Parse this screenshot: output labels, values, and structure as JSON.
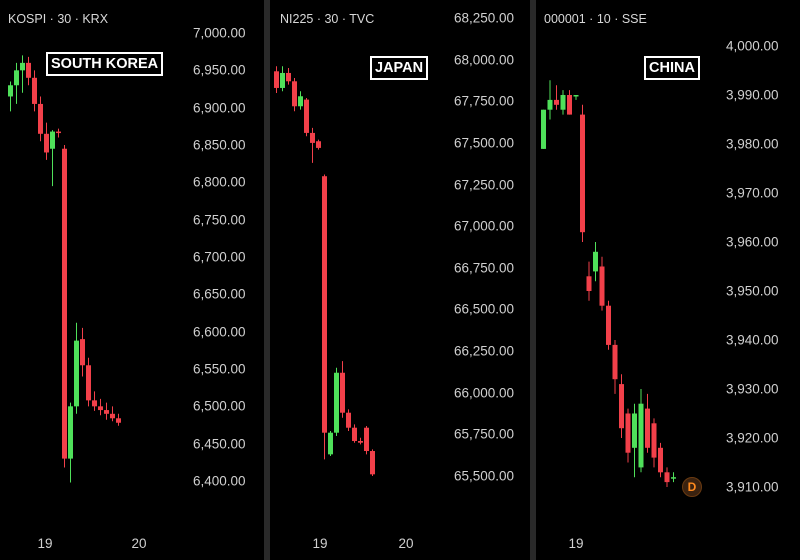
{
  "colors": {
    "up": "#4fe05a",
    "down": "#f2404a",
    "background": "#000000",
    "text": "#d0d0d0"
  },
  "chart_data": [
    {
      "type": "candlestick",
      "symbol": "KOSPI · 30 · KRX",
      "label": "SOUTH KOREA",
      "ylim": [
        6380,
        7025
      ],
      "y_ticks": [
        "7,000.00",
        "6,950.00",
        "6,900.00",
        "6,850.00",
        "6,800.00",
        "6,750.00",
        "6,700.00",
        "6,650.00",
        "6,600.00",
        "6,550.00",
        "6,500.00",
        "6,450.00",
        "6,400.00"
      ],
      "x_ticks": [
        "19",
        "20"
      ],
      "candles": [
        {
          "o": 6915,
          "h": 6935,
          "l": 6895,
          "c": 6930
        },
        {
          "o": 6930,
          "h": 6960,
          "l": 6905,
          "c": 6950
        },
        {
          "o": 6950,
          "h": 6970,
          "l": 6920,
          "c": 6960
        },
        {
          "o": 6960,
          "h": 6968,
          "l": 6930,
          "c": 6940
        },
        {
          "o": 6940,
          "h": 6950,
          "l": 6895,
          "c": 6905
        },
        {
          "o": 6905,
          "h": 6915,
          "l": 6855,
          "c": 6865
        },
        {
          "o": 6865,
          "h": 6880,
          "l": 6830,
          "c": 6840
        },
        {
          "o": 6845,
          "h": 6870,
          "l": 6795,
          "c": 6868
        },
        {
          "o": 6868,
          "h": 6872,
          "l": 6860,
          "c": 6866
        },
        {
          "o": 6845,
          "h": 6850,
          "l": 6418,
          "c": 6430
        },
        {
          "o": 6430,
          "h": 6505,
          "l": 6398,
          "c": 6500
        },
        {
          "o": 6500,
          "h": 6612,
          "l": 6490,
          "c": 6588
        },
        {
          "o": 6590,
          "h": 6605,
          "l": 6540,
          "c": 6555
        },
        {
          "o": 6555,
          "h": 6565,
          "l": 6500,
          "c": 6508
        },
        {
          "o": 6508,
          "h": 6520,
          "l": 6494,
          "c": 6500
        },
        {
          "o": 6500,
          "h": 6510,
          "l": 6488,
          "c": 6495
        },
        {
          "o": 6495,
          "h": 6505,
          "l": 6482,
          "c": 6490
        },
        {
          "o": 6490,
          "h": 6500,
          "l": 6480,
          "c": 6484
        },
        {
          "o": 6484,
          "h": 6490,
          "l": 6474,
          "c": 6478
        }
      ]
    },
    {
      "type": "candlestick",
      "symbol": "NI225 · 30 · TVC",
      "label": "JAPAN",
      "ylim": [
        65430,
        68260
      ],
      "y_ticks": [
        "68,250.00",
        "68,000.00",
        "67,750.00",
        "67,500.00",
        "67,250.00",
        "67,000.00",
        "66,750.00",
        "66,500.00",
        "66,250.00",
        "66,000.00",
        "65,750.00",
        "65,500.00"
      ],
      "x_ticks": [
        "19",
        "20"
      ],
      "candles": [
        {
          "o": 67930,
          "h": 67960,
          "l": 67800,
          "c": 67830
        },
        {
          "o": 67830,
          "h": 67960,
          "l": 67810,
          "c": 67920
        },
        {
          "o": 67920,
          "h": 67950,
          "l": 67850,
          "c": 67870
        },
        {
          "o": 67870,
          "h": 67890,
          "l": 67690,
          "c": 67720
        },
        {
          "o": 67720,
          "h": 67810,
          "l": 67700,
          "c": 67780
        },
        {
          "o": 67760,
          "h": 67770,
          "l": 67540,
          "c": 67560
        },
        {
          "o": 67560,
          "h": 67590,
          "l": 67380,
          "c": 67500
        },
        {
          "o": 67510,
          "h": 67520,
          "l": 67460,
          "c": 67470
        },
        {
          "o": 67300,
          "h": 67310,
          "l": 65600,
          "c": 65760
        },
        {
          "o": 65630,
          "h": 65770,
          "l": 65620,
          "c": 65760
        },
        {
          "o": 65760,
          "h": 66150,
          "l": 65740,
          "c": 66120
        },
        {
          "o": 66120,
          "h": 66190,
          "l": 65850,
          "c": 65880
        },
        {
          "o": 65880,
          "h": 65900,
          "l": 65770,
          "c": 65790
        },
        {
          "o": 65790,
          "h": 65810,
          "l": 65700,
          "c": 65710
        },
        {
          "o": 65710,
          "h": 65730,
          "l": 65690,
          "c": 65700
        },
        {
          "o": 65790,
          "h": 65800,
          "l": 65630,
          "c": 65650
        },
        {
          "o": 65650,
          "h": 65660,
          "l": 65500,
          "c": 65510
        }
      ]
    },
    {
      "type": "candlestick",
      "symbol": "000001 · 10 · SSE",
      "label": "CHINA",
      "ylim": [
        3907.5,
        4001
      ],
      "y_ticks": [
        "4,000.00",
        "3,990.00",
        "3,980.00",
        "3,970.00",
        "3,960.00",
        "3,950.00",
        "3,940.00",
        "3,930.00",
        "3,920.00",
        "3,910.00"
      ],
      "x_ticks": [
        "19"
      ],
      "candles": [
        {
          "o": 3979,
          "h": 3987,
          "l": 3979,
          "c": 3987
        },
        {
          "o": 3987,
          "h": 3993,
          "l": 3985,
          "c": 3989
        },
        {
          "o": 3989,
          "h": 3992,
          "l": 3987,
          "c": 3988
        },
        {
          "o": 3987,
          "h": 3991,
          "l": 3986,
          "c": 3990
        },
        {
          "o": 3990,
          "h": 3991,
          "l": 3986,
          "c": 3986
        },
        {
          "o": 3990,
          "h": 3990,
          "l": 3989,
          "c": 3990
        },
        {
          "o": 3986,
          "h": 3988,
          "l": 3960,
          "c": 3962
        },
        {
          "o": 3953,
          "h": 3956,
          "l": 3948,
          "c": 3950
        },
        {
          "o": 3954,
          "h": 3960,
          "l": 3952,
          "c": 3958
        },
        {
          "o": 3955,
          "h": 3957,
          "l": 3946,
          "c": 3947
        },
        {
          "o": 3947,
          "h": 3948,
          "l": 3938,
          "c": 3939
        },
        {
          "o": 3939,
          "h": 3940,
          "l": 3929,
          "c": 3932
        },
        {
          "o": 3931,
          "h": 3933,
          "l": 3920,
          "c": 3922
        },
        {
          "o": 3925,
          "h": 3926,
          "l": 3915,
          "c": 3917
        },
        {
          "o": 3918,
          "h": 3927,
          "l": 3912,
          "c": 3925
        },
        {
          "o": 3914,
          "h": 3930,
          "l": 3913,
          "c": 3927
        },
        {
          "o": 3926,
          "h": 3929,
          "l": 3917,
          "c": 3918
        },
        {
          "o": 3923,
          "h": 3924,
          "l": 3914,
          "c": 3916
        },
        {
          "o": 3918,
          "h": 3919,
          "l": 3912,
          "c": 3913
        },
        {
          "o": 3913,
          "h": 3914,
          "l": 3910,
          "c": 3911
        },
        {
          "o": 3912,
          "h": 3913,
          "l": 3911,
          "c": 3912
        }
      ],
      "marker": "D"
    }
  ]
}
